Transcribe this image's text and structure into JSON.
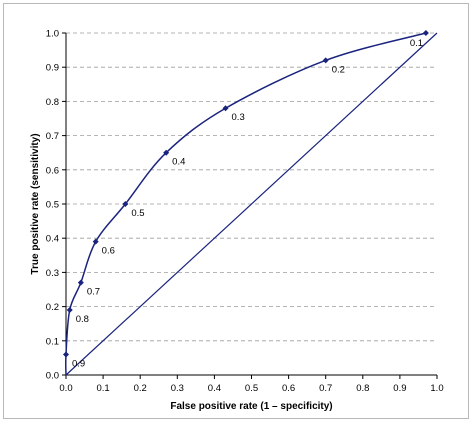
{
  "chart_data": {
    "type": "line",
    "title": "",
    "xlabel": "False positive rate (1 – specificity)",
    "ylabel": "True positive rate (sensitivity)",
    "xlim": [
      0,
      1
    ],
    "ylim": [
      0,
      1
    ],
    "x_ticks": [
      "0.0",
      "0.1",
      "0.2",
      "0.3",
      "0.4",
      "0.5",
      "0.6",
      "0.7",
      "0.8",
      "0.9",
      "1.0"
    ],
    "y_ticks": [
      "0.0",
      "0.1",
      "0.2",
      "0.3",
      "0.4",
      "0.5",
      "0.6",
      "0.7",
      "0.8",
      "0.9",
      "1.0"
    ],
    "grid": "horizontal dashed",
    "legend": "none",
    "reference_line": {
      "x": [
        0,
        1
      ],
      "y": [
        0,
        1
      ]
    },
    "series": [
      {
        "points": [
          {
            "x": 0.0,
            "y": 0.0,
            "label": ""
          },
          {
            "x": 0.0,
            "y": 0.06,
            "label": "0.9"
          },
          {
            "x": 0.01,
            "y": 0.19,
            "label": "0.8"
          },
          {
            "x": 0.04,
            "y": 0.27,
            "label": "0.7"
          },
          {
            "x": 0.08,
            "y": 0.39,
            "label": "0.6"
          },
          {
            "x": 0.16,
            "y": 0.5,
            "label": "0.5"
          },
          {
            "x": 0.27,
            "y": 0.65,
            "label": "0.4"
          },
          {
            "x": 0.43,
            "y": 0.78,
            "label": "0.3"
          },
          {
            "x": 0.7,
            "y": 0.92,
            "label": "0.2"
          },
          {
            "x": 0.97,
            "y": 1.0,
            "label": "0.1"
          }
        ]
      }
    ],
    "colors": {
      "series": "#1a237e",
      "diagonal": "#1a237e",
      "grid": "#9e9e9e",
      "axis": "#000000"
    }
  }
}
